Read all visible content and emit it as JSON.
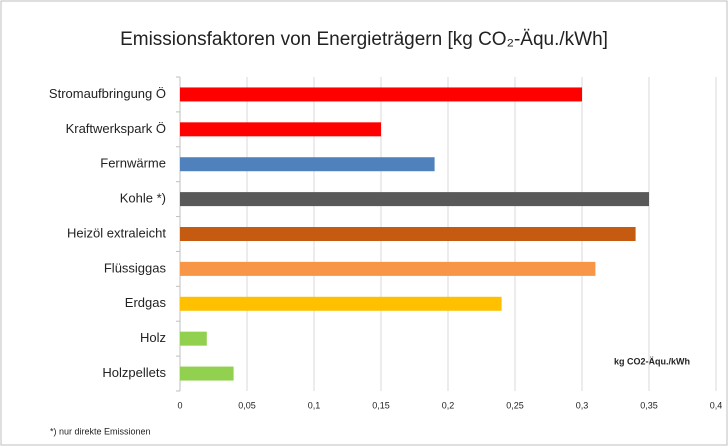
{
  "chart_data": {
    "type": "bar",
    "orientation": "horizontal",
    "title": "Emissionsfaktoren von Energieträgern [kg CO₂-Äqu./kWh]",
    "x_axis_label": "kg CO2-Äqu./kWh",
    "footnote": "*) nur direkte Emissionen",
    "categories": [
      "Stromaufbringung Ö",
      "Kraftwerkspark Ö",
      "Fernwärme",
      "Kohle *)",
      "Heizöl extraleicht",
      "Flüssiggas",
      "Erdgas",
      "Holz",
      "Holzpellets"
    ],
    "values": [
      0.3,
      0.15,
      0.19,
      0.35,
      0.34,
      0.31,
      0.24,
      0.02,
      0.04
    ],
    "colors": [
      "#ff0000",
      "#ff0000",
      "#4f81bd",
      "#595959",
      "#c55a11",
      "#f79646",
      "#ffc000",
      "#92d050",
      "#92d050"
    ],
    "xlim": [
      0,
      0.4
    ],
    "xticks": [
      0,
      {
        "value": 0.05,
        "label": "0,05"
      },
      {
        "value": 0.1,
        "label": "0,1"
      },
      {
        "value": 0.15,
        "label": "0,15"
      },
      {
        "value": 0.2,
        "label": "0,2"
      },
      {
        "value": 0.25,
        "label": "0,25"
      },
      {
        "value": 0.3,
        "label": "0,3"
      },
      {
        "value": 0.35,
        "label": "0,35"
      },
      {
        "value": 0.4,
        "label": "0,4"
      }
    ],
    "grid": true
  }
}
